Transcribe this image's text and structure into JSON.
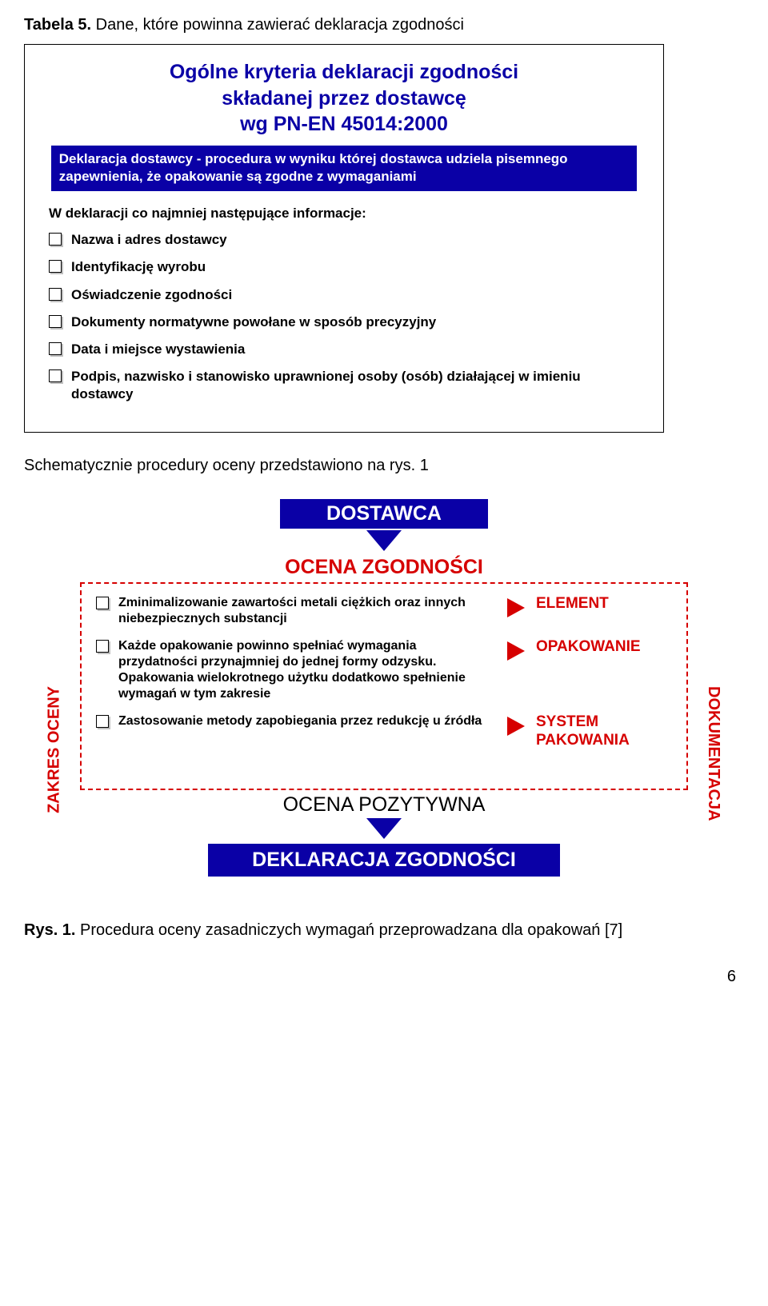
{
  "tabela": {
    "label": "Tabela 5.",
    "rest": " Dane, które powinna zawierać deklaracja zgodności"
  },
  "fig1": {
    "title_l1": "Ogólne kryteria deklaracji zgodności",
    "title_l2": "składanej przez dostawcę",
    "title_l3": "wg PN-EN 45014:2000",
    "bluebar": "Deklaracja dostawcy - procedura w wyniku której dostawca udziela pisemnego zapewnienia, że opakowanie są zgodne z wymaganiami",
    "intro": "W deklaracji co najmniej następujące informacje:",
    "items": [
      "Nazwa i adres dostawcy",
      "Identyfikację wyrobu",
      "Oświadczenie zgodności",
      "Dokumenty normatywne powołane w sposób precyzyjny",
      "Data i miejsce wystawienia",
      "Podpis, nazwisko i stanowisko uprawnionej osoby (osób) działającej w imieniu dostawcy"
    ],
    "colors": {
      "title": "#0a00a6",
      "bluebar_bg": "#0a00a6",
      "bluebar_text": "#ffffff"
    }
  },
  "midtext": "Schematycznie procedury oceny przedstawiono na rys. 1",
  "fig2": {
    "dostawca": "DOSTAWCA",
    "ocena_zgod": "OCENA ZGODNOŚCI",
    "zakres": "ZAKRES OCENY",
    "dokumentacja": "DOKUMENTACJA",
    "rows": [
      {
        "text": "Zminimalizowanie zawartości metali ciężkich oraz innych niebezpiecznych substancji",
        "label": "ELEMENT"
      },
      {
        "text": "Każde opakowanie powinno spełniać wymagania przydatności przynajmniej do jednej formy odzysku. Opakowania wielokrotnego użytku dodatkowo spełnienie wymagań w tym zakresie",
        "label": "OPAKOWANIE"
      },
      {
        "text": "Zastosowanie metody zapobiegania przez redukcję u źródła",
        "label": "SYSTEM PAKOWANIA"
      }
    ],
    "ocena_poz": "OCENA POZYTYWNA",
    "deklaracja": "DEKLARACJA ZGODNOŚCI",
    "colors": {
      "blue": "#0a00a6",
      "red": "#d60000",
      "white": "#ffffff",
      "dash_border": "#d60000"
    }
  },
  "caption": {
    "bold": "Rys. 1.",
    "rest": " Procedura oceny zasadniczych wymagań przeprowadzana dla opakowań [7]"
  },
  "pagenum": "6"
}
